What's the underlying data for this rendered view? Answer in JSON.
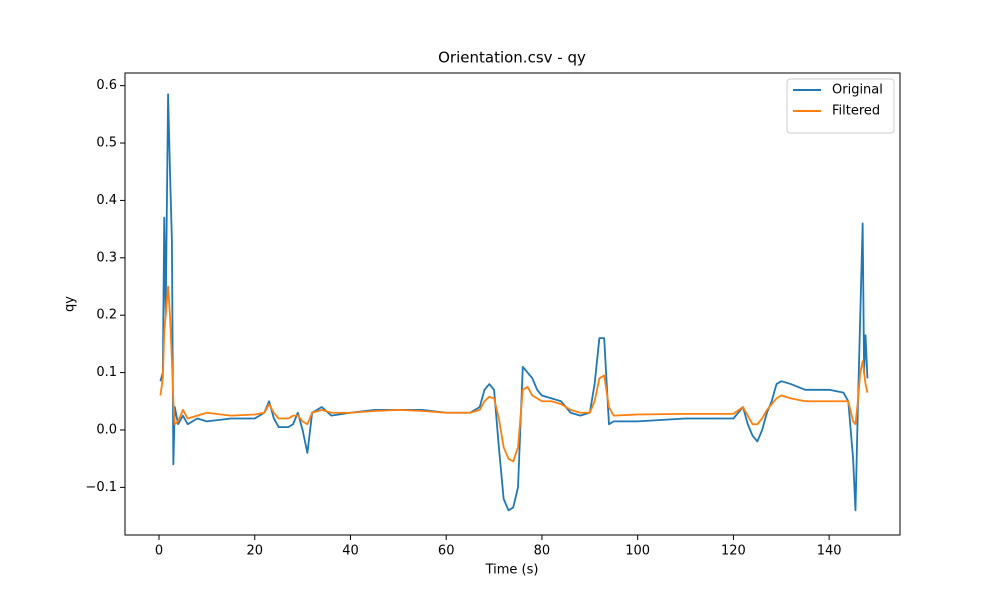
{
  "chart_data": {
    "type": "line",
    "title": "Orientation.csv - qy",
    "xlabel": "Time (s)",
    "ylabel": "qy",
    "x": [
      0.3,
      0.8,
      1.1,
      1.4,
      1.9,
      2.3,
      2.7,
      3.0,
      3.3,
      4,
      5,
      6,
      8,
      10,
      15,
      20,
      22,
      23,
      24,
      25,
      27,
      28,
      29,
      30,
      31,
      32,
      34,
      36,
      40,
      45,
      50,
      55,
      60,
      65,
      67,
      68,
      69,
      70,
      71,
      72,
      73,
      74,
      75,
      76,
      77,
      78,
      79,
      80,
      82,
      84,
      86,
      88,
      90,
      91,
      92,
      93,
      94,
      95,
      100,
      110,
      120,
      122,
      123,
      124,
      125,
      126,
      127,
      128,
      129,
      130,
      132,
      135,
      140,
      143,
      144,
      145,
      145.5,
      146,
      146.5,
      147,
      147.3,
      147.6,
      148
    ],
    "series": [
      {
        "name": "Original",
        "color": "#1f77b4",
        "values": [
          0.085,
          0.1,
          0.37,
          0.2,
          0.585,
          0.45,
          0.33,
          -0.06,
          0.04,
          0.01,
          0.025,
          0.01,
          0.02,
          0.015,
          0.02,
          0.02,
          0.03,
          0.05,
          0.02,
          0.005,
          0.005,
          0.01,
          0.03,
          0.0,
          -0.04,
          0.03,
          0.04,
          0.025,
          0.03,
          0.035,
          0.035,
          0.035,
          0.03,
          0.03,
          0.04,
          0.07,
          0.08,
          0.07,
          -0.03,
          -0.12,
          -0.14,
          -0.135,
          -0.1,
          0.11,
          0.1,
          0.09,
          0.07,
          0.06,
          0.055,
          0.05,
          0.03,
          0.025,
          0.03,
          0.08,
          0.16,
          0.16,
          0.01,
          0.015,
          0.015,
          0.02,
          0.02,
          0.04,
          0.01,
          -0.01,
          -0.02,
          0.0,
          0.03,
          0.05,
          0.08,
          0.085,
          0.08,
          0.07,
          0.07,
          0.065,
          0.05,
          -0.05,
          -0.14,
          0.04,
          0.2,
          0.36,
          0.1,
          0.165,
          0.09
        ]
      },
      {
        "name": "Filtered",
        "color": "#ff7f0e",
        "values": [
          0.06,
          0.09,
          0.17,
          0.2,
          0.25,
          0.2,
          0.12,
          0.05,
          0.01,
          0.015,
          0.035,
          0.02,
          0.025,
          0.03,
          0.025,
          0.027,
          0.03,
          0.045,
          0.03,
          0.02,
          0.02,
          0.025,
          0.025,
          0.015,
          0.01,
          0.03,
          0.035,
          0.03,
          0.03,
          0.033,
          0.035,
          0.033,
          0.03,
          0.03,
          0.035,
          0.05,
          0.058,
          0.055,
          0.02,
          -0.03,
          -0.05,
          -0.055,
          -0.03,
          0.07,
          0.075,
          0.06,
          0.055,
          0.05,
          0.05,
          0.045,
          0.035,
          0.03,
          0.03,
          0.05,
          0.09,
          0.095,
          0.04,
          0.025,
          0.027,
          0.028,
          0.028,
          0.04,
          0.025,
          0.01,
          0.01,
          0.02,
          0.035,
          0.045,
          0.055,
          0.06,
          0.055,
          0.05,
          0.05,
          0.05,
          0.05,
          0.015,
          0.01,
          0.05,
          0.1,
          0.12,
          0.1,
          0.08,
          0.065
        ]
      }
    ],
    "xlim": [
      -7.1,
      154.8
    ],
    "ylim": [
      -0.183,
      0.622
    ],
    "xticks": [
      0,
      20,
      40,
      60,
      80,
      100,
      120,
      140
    ],
    "yticks": [
      {
        "value": -0.1,
        "label": "−0.1"
      },
      {
        "value": 0,
        "label": "0.0"
      },
      0.1,
      0.2,
      0.3,
      0.4,
      0.5,
      0.6
    ],
    "legend": "upper right"
  }
}
